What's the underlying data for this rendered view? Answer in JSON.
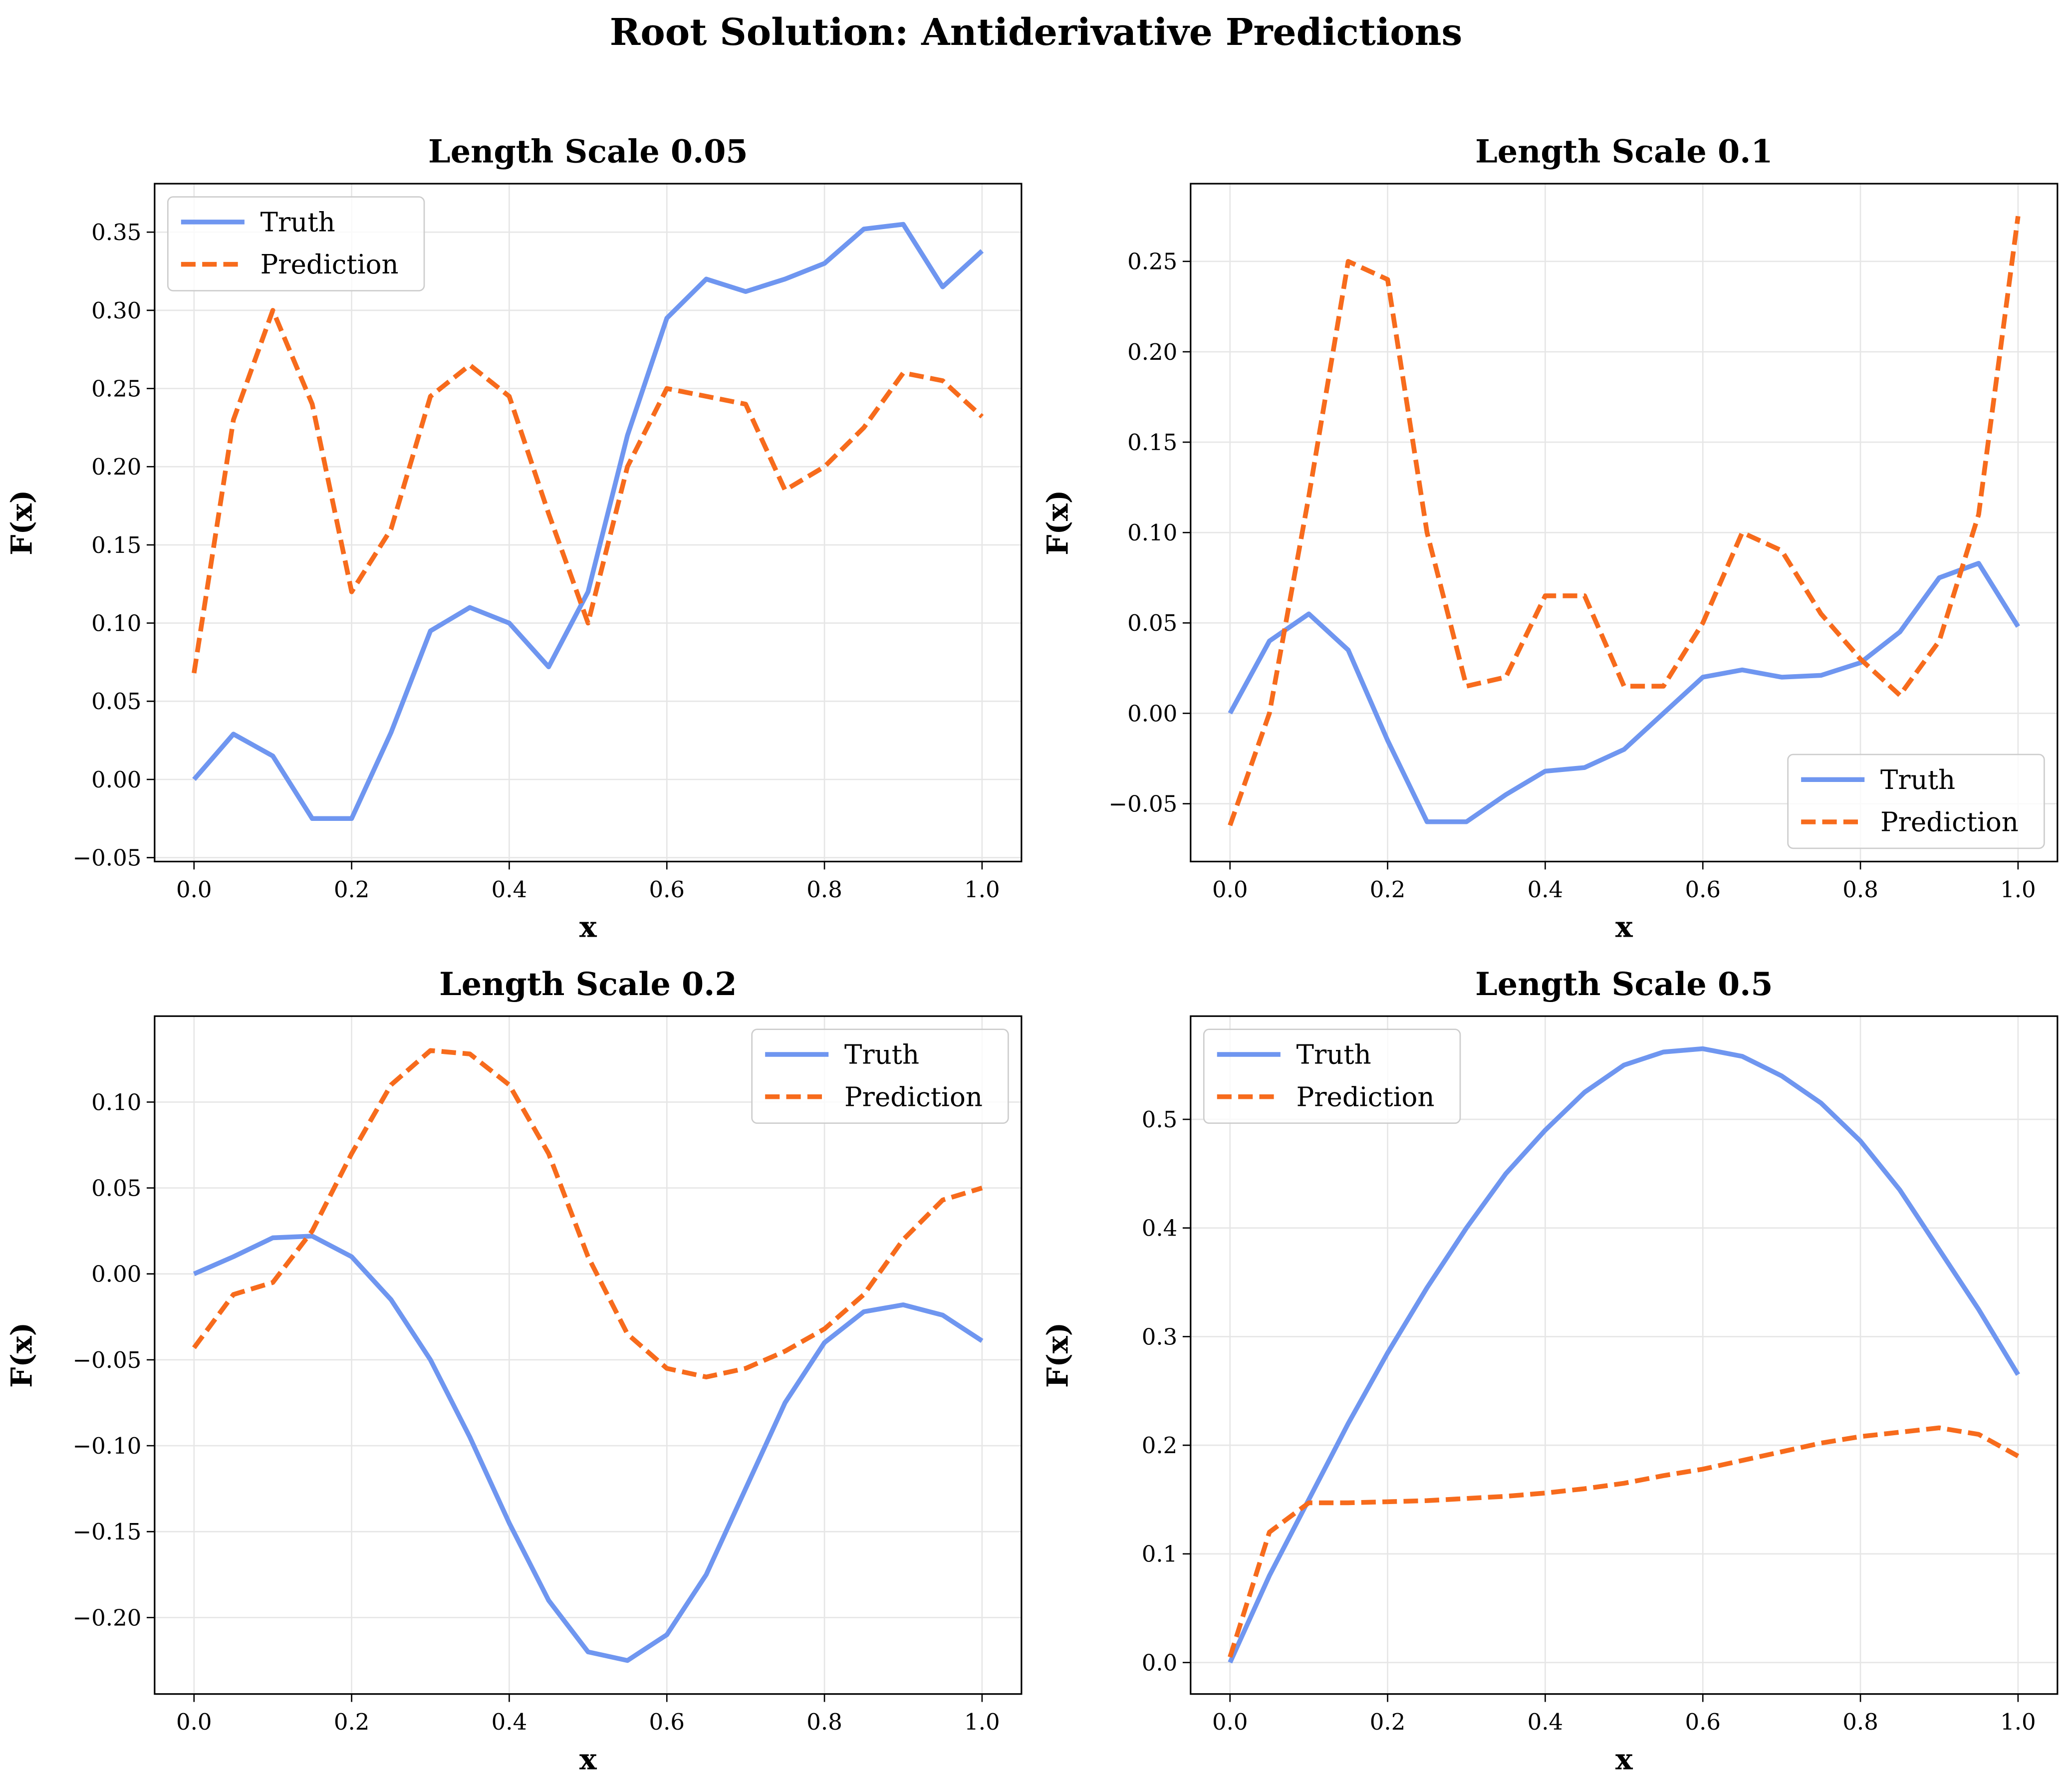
{
  "title": "Root Solution: Antiderivative Predictions",
  "chart_data": [
    {
      "type": "line",
      "title": "Length Scale 0.05",
      "xlabel": "x",
      "ylabel": "F(x)",
      "grid": true,
      "legend": "upper left",
      "x": [
        0,
        0.05,
        0.1,
        0.15,
        0.2,
        0.25,
        0.3,
        0.35,
        0.4,
        0.45,
        0.5,
        0.55,
        0.6,
        0.65,
        0.7,
        0.75,
        0.8,
        0.85,
        0.9,
        0.95,
        1
      ],
      "xlim": [
        -0.05,
        1.05
      ],
      "xticks": [
        {
          "value": 0,
          "label": "0.0"
        },
        0.2,
        0.4,
        0.6,
        0.8,
        {
          "value": 1,
          "label": "1.0"
        }
      ],
      "ylim": [
        -0.0525,
        0.381
      ],
      "yticks": [
        {
          "value": -0.05,
          "label": "−0.05"
        },
        {
          "value": 0,
          "label": "0.00"
        },
        0.05,
        {
          "value": 0.1,
          "label": "0.10"
        },
        0.15,
        {
          "value": 0.2,
          "label": "0.20"
        },
        0.25,
        {
          "value": 0.3,
          "label": "0.30"
        },
        0.35
      ],
      "series": [
        {
          "name": "Truth",
          "color": "#6f96f0",
          "linestyle": "solid",
          "values": [
            0,
            0.029,
            0.015,
            -0.025,
            -0.025,
            0.03,
            0.095,
            0.11,
            0.1,
            0.072,
            0.12,
            0.22,
            0.295,
            0.32,
            0.312,
            0.32,
            0.33,
            0.352,
            0.355,
            0.315,
            0.338
          ]
        },
        {
          "name": "Prediction",
          "color": "#f76b1c",
          "linestyle": "dashed",
          "values": [
            0.068,
            0.23,
            0.3,
            0.24,
            0.12,
            0.16,
            0.245,
            0.265,
            0.245,
            0.17,
            0.1,
            0.2,
            0.25,
            0.245,
            0.24,
            0.185,
            0.2,
            0.225,
            0.26,
            0.255,
            0.232
          ]
        }
      ]
    },
    {
      "type": "line",
      "title": "Length Scale 0.1",
      "xlabel": "x",
      "ylabel": "F(x)",
      "grid": true,
      "legend": "lower right",
      "x": [
        0,
        0.05,
        0.1,
        0.15,
        0.2,
        0.25,
        0.3,
        0.35,
        0.4,
        0.45,
        0.5,
        0.55,
        0.6,
        0.65,
        0.7,
        0.75,
        0.8,
        0.85,
        0.9,
        0.95,
        1
      ],
      "xlim": [
        -0.05,
        1.05
      ],
      "xticks": [
        {
          "value": 0,
          "label": "0.0"
        },
        0.2,
        0.4,
        0.6,
        0.8,
        {
          "value": 1,
          "label": "1.0"
        }
      ],
      "ylim": [
        -0.082,
        0.293
      ],
      "yticks": [
        {
          "value": -0.05,
          "label": "−0.05"
        },
        {
          "value": 0,
          "label": "0.00"
        },
        0.05,
        {
          "value": 0.1,
          "label": "0.10"
        },
        0.15,
        {
          "value": 0.2,
          "label": "0.20"
        },
        0.25
      ],
      "series": [
        {
          "name": "Truth",
          "color": "#6f96f0",
          "linestyle": "solid",
          "values": [
            0,
            0.04,
            0.055,
            0.035,
            -0.015,
            -0.06,
            -0.06,
            -0.045,
            -0.032,
            -0.03,
            -0.02,
            0,
            0.02,
            0.024,
            0.02,
            0.021,
            0.028,
            0.045,
            0.075,
            0.083,
            0.048
          ]
        },
        {
          "name": "Prediction",
          "color": "#f76b1c",
          "linestyle": "dashed",
          "values": [
            -0.062,
            0,
            0.12,
            0.25,
            0.24,
            0.1,
            0.015,
            0.02,
            0.065,
            0.065,
            0.015,
            0.015,
            0.05,
            0.1,
            0.09,
            0.055,
            0.03,
            0.01,
            0.04,
            0.11,
            0.275
          ]
        }
      ]
    },
    {
      "type": "line",
      "title": "Length Scale 0.2",
      "xlabel": "x",
      "ylabel": "F(x)",
      "grid": true,
      "legend": "upper right",
      "x": [
        0,
        0.05,
        0.1,
        0.15,
        0.2,
        0.25,
        0.3,
        0.35,
        0.4,
        0.45,
        0.5,
        0.55,
        0.6,
        0.65,
        0.7,
        0.75,
        0.8,
        0.85,
        0.9,
        0.95,
        1
      ],
      "xlim": [
        -0.05,
        1.05
      ],
      "xticks": [
        {
          "value": 0,
          "label": "0.0"
        },
        0.2,
        0.4,
        0.6,
        0.8,
        {
          "value": 1,
          "label": "1.0"
        }
      ],
      "ylim": [
        -0.2445,
        0.15
      ],
      "yticks": [
        {
          "value": -0.2,
          "label": "−0.20"
        },
        {
          "value": -0.15,
          "label": "−0.15"
        },
        {
          "value": -0.1,
          "label": "−0.10"
        },
        {
          "value": -0.05,
          "label": "−0.05"
        },
        {
          "value": 0,
          "label": "0.00"
        },
        0.05,
        {
          "value": 0.1,
          "label": "0.10"
        }
      ],
      "series": [
        {
          "name": "Truth",
          "color": "#6f96f0",
          "linestyle": "solid",
          "values": [
            0,
            0.01,
            0.021,
            0.022,
            0.01,
            -0.015,
            -0.05,
            -0.095,
            -0.145,
            -0.19,
            -0.22,
            -0.225,
            -0.21,
            -0.175,
            -0.125,
            -0.075,
            -0.04,
            -0.022,
            -0.018,
            -0.024,
            -0.039
          ]
        },
        {
          "name": "Prediction",
          "color": "#f76b1c",
          "linestyle": "dashed",
          "values": [
            -0.043,
            -0.012,
            -0.005,
            0.025,
            0.07,
            0.11,
            0.13,
            0.128,
            0.11,
            0.07,
            0.01,
            -0.035,
            -0.055,
            -0.06,
            -0.055,
            -0.045,
            -0.032,
            -0.012,
            0.02,
            0.043,
            0.05
          ]
        }
      ]
    },
    {
      "type": "line",
      "title": "Length Scale 0.5",
      "xlabel": "x",
      "ylabel": "F(x)",
      "grid": true,
      "legend": "upper left",
      "x": [
        0,
        0.05,
        0.1,
        0.15,
        0.2,
        0.25,
        0.3,
        0.35,
        0.4,
        0.45,
        0.5,
        0.55,
        0.6,
        0.65,
        0.7,
        0.75,
        0.8,
        0.85,
        0.9,
        0.95,
        1
      ],
      "xlim": [
        -0.05,
        1.05
      ],
      "xticks": [
        {
          "value": 0,
          "label": "0.0"
        },
        0.2,
        0.4,
        0.6,
        0.8,
        {
          "value": 1,
          "label": "1.0"
        }
      ],
      "ylim": [
        -0.029,
        0.595
      ],
      "yticks": [
        {
          "value": 0,
          "label": "0.0"
        },
        0.1,
        0.2,
        0.3,
        0.4,
        0.5
      ],
      "series": [
        {
          "name": "Truth",
          "color": "#6f96f0",
          "linestyle": "solid",
          "values": [
            0,
            0.08,
            0.15,
            0.22,
            0.285,
            0.345,
            0.4,
            0.45,
            0.49,
            0.525,
            0.55,
            0.562,
            0.565,
            0.558,
            0.54,
            0.515,
            0.48,
            0.435,
            0.38,
            0.325,
            0.265
          ]
        },
        {
          "name": "Prediction",
          "color": "#f76b1c",
          "linestyle": "dashed",
          "values": [
            0.005,
            0.12,
            0.147,
            0.147,
            0.148,
            0.149,
            0.151,
            0.153,
            0.156,
            0.16,
            0.165,
            0.172,
            0.178,
            0.186,
            0.194,
            0.202,
            0.208,
            0.212,
            0.216,
            0.21,
            0.19
          ]
        }
      ]
    }
  ]
}
